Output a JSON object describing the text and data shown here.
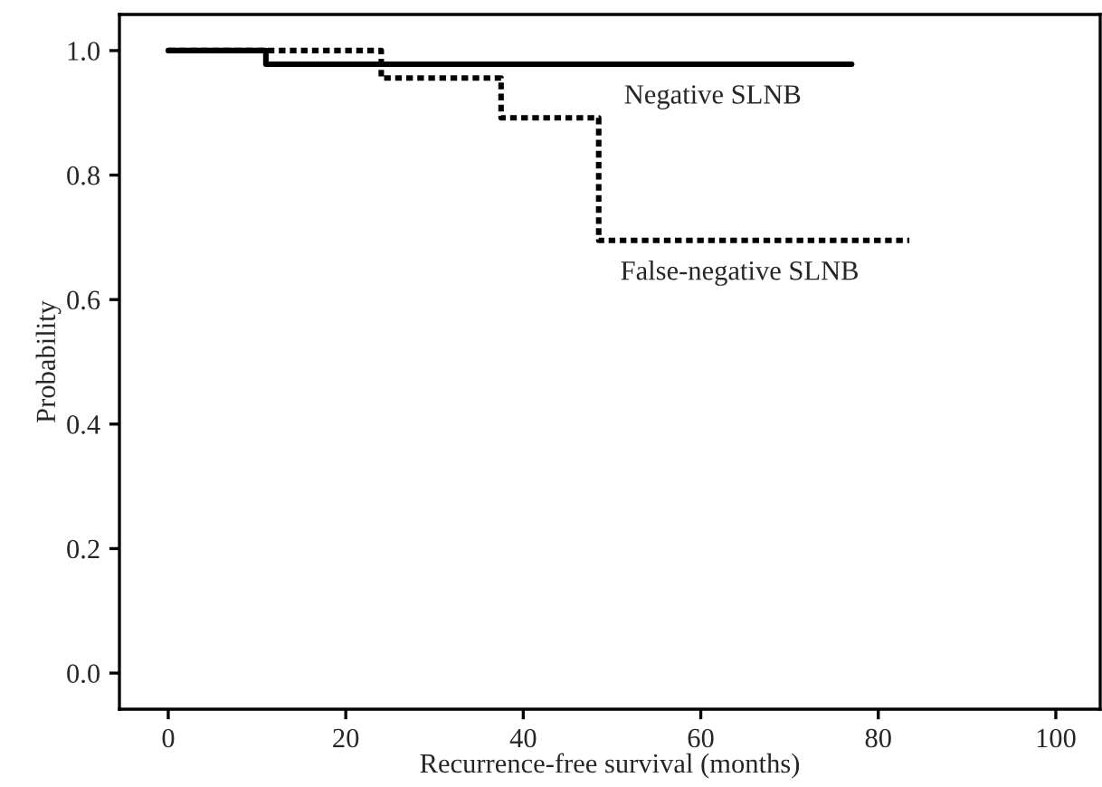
{
  "chart_data": {
    "type": "step",
    "xlabel": "Recurrence-free survival (months)",
    "ylabel": "Probability",
    "xlim": [
      -5.5,
      105
    ],
    "ylim": [
      -0.058,
      1.058
    ],
    "xticks": [
      0,
      20,
      40,
      60,
      80,
      100
    ],
    "yticks": [
      {
        "value": 0,
        "label": "0.0"
      },
      {
        "value": 0.2,
        "label": "0.2"
      },
      {
        "value": 0.4,
        "label": "0.4"
      },
      {
        "value": 0.6,
        "label": "0.6"
      },
      {
        "value": 0.8,
        "label": "0.8"
      },
      {
        "value": 1,
        "label": "1.0"
      }
    ],
    "grid": false,
    "legend": false,
    "series": [
      {
        "name": "Negative SLNB",
        "color": "#000000",
        "line_style": "solid",
        "x": [
          0,
          11,
          77
        ],
        "values": [
          1.0,
          0.978,
          0.978
        ]
      },
      {
        "name": "False-negative SLNB",
        "color": "#000000",
        "line_style": "dotted",
        "x": [
          0,
          24,
          37.5,
          48.5,
          83.5
        ],
        "values": [
          1.0,
          0.956,
          0.892,
          0.695,
          0.695
        ]
      }
    ]
  }
}
